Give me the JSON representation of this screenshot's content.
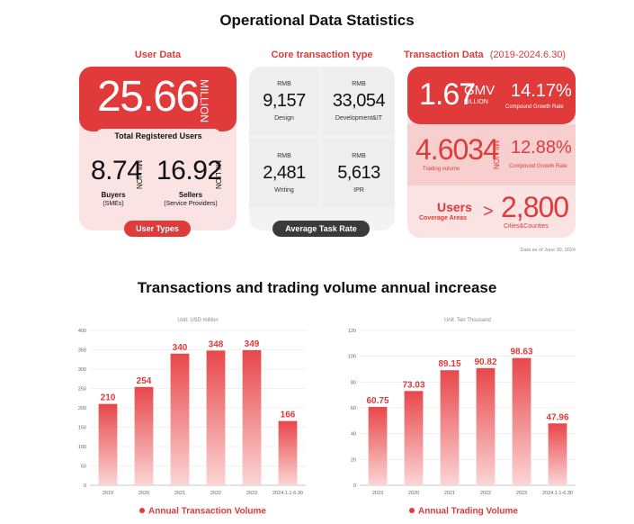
{
  "page_title": "Operational Data Statistics",
  "user_data": {
    "heading": "User Data",
    "total_value": "25.66",
    "total_unit": "MILLION",
    "total_label": "Total Registered Users",
    "buyers_value": "8.74",
    "buyers_unit": "MILLION",
    "buyers_label": "Buyers",
    "buyers_sub": "(SMEs)",
    "sellers_value": "16.92",
    "sellers_unit": "MILLION",
    "sellers_label": "Sellers",
    "sellers_sub": "(Service Providers)",
    "pill": "User Types"
  },
  "core": {
    "heading": "Core transaction type",
    "cells": [
      {
        "rmb": "RMB",
        "value": "9,157",
        "label": "Design"
      },
      {
        "rmb": "RMB",
        "value": "33,054",
        "label": "Development&IT"
      },
      {
        "rmb": "RMB",
        "value": "2,481",
        "label": "Writing"
      },
      {
        "rmb": "RMB",
        "value": "5,613",
        "label": "IPR"
      }
    ],
    "pill": "Average Task Rate"
  },
  "transaction": {
    "heading": "Transaction Data",
    "period": "(2019-2024.6.30)",
    "gmv_value": "1.67",
    "gmv_unit1": "GMV",
    "gmv_unit2": "BILLION",
    "gmv_growth": "14.17%",
    "gmv_growth_label": "Compound Growth Rate",
    "vol_value": "4.6034",
    "vol_unit": "MILLION",
    "vol_label": "Trading volume",
    "vol_growth": "12.88%",
    "vol_growth_label": "Compound Growth Rate",
    "users_label": "Users",
    "coverage_label": "Coverage Areas",
    "arrow": ">",
    "cities_value": "2,800",
    "cities_label": "Cities&Counties"
  },
  "data_note": "Data as of June 30, 2024",
  "section2_title": "Transactions and trading volume annual increase",
  "colors": {
    "accent": "#e03a3a",
    "accent_light": "#fbe3e3",
    "dark_pill": "#3a3a3a"
  },
  "chart_data": [
    {
      "type": "bar",
      "unit_label": "Unit: USD million",
      "categories": [
        "2019",
        "2020",
        "2021",
        "2022",
        "2023",
        "2024.1.1-6.30"
      ],
      "values": [
        210,
        254,
        340,
        348,
        349,
        166
      ],
      "data_labels": [
        "210",
        "254",
        "340",
        "348",
        "349",
        "166"
      ],
      "ylim": [
        0,
        400
      ],
      "yticks": [
        0,
        50,
        100,
        150,
        200,
        250,
        300,
        350,
        400
      ],
      "legend": "Annual Transaction Volume",
      "legend_position": "bottom",
      "grid": true
    },
    {
      "type": "bar",
      "unit_label": "Unit: Ten Thousand",
      "categories": [
        "2019",
        "2020",
        "2021",
        "2022",
        "2023",
        "2024.1.1-6.30"
      ],
      "values": [
        60.75,
        73.03,
        89.15,
        90.82,
        98.63,
        47.96
      ],
      "data_labels": [
        "60.75",
        "73.03",
        "89.15",
        "90.82",
        "98.63",
        "47.96"
      ],
      "ylim": [
        0,
        120
      ],
      "yticks": [
        0,
        20,
        40,
        60,
        80,
        100,
        120
      ],
      "legend": "Annual Trading Volume",
      "legend_position": "bottom",
      "grid": true
    }
  ]
}
